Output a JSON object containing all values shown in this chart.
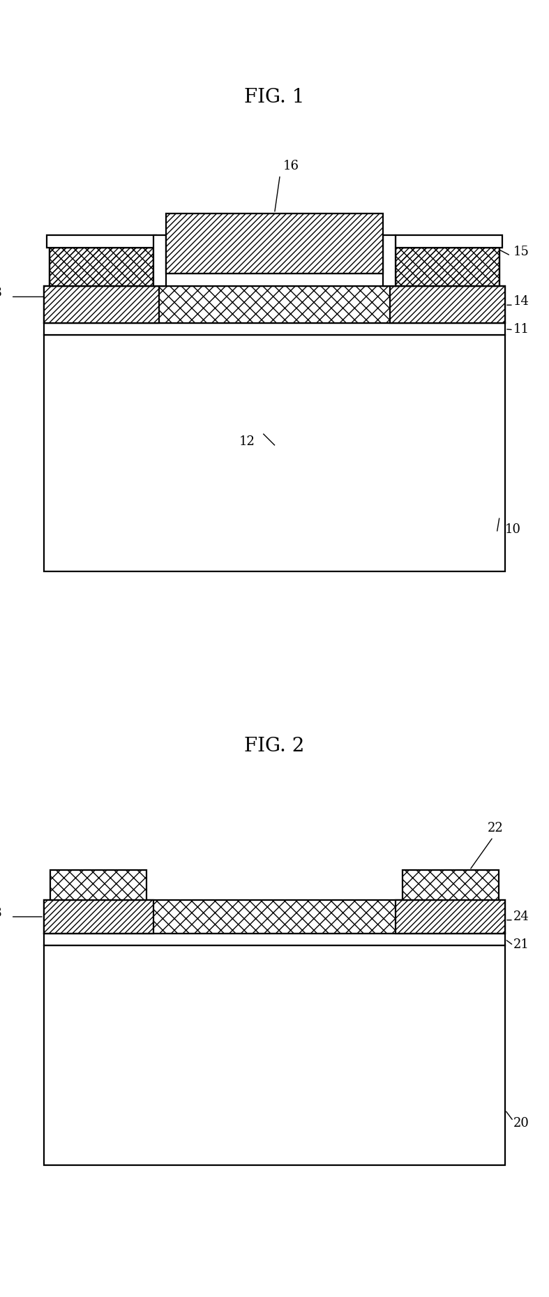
{
  "fig1_title": "FIG. 1",
  "fig2_title": "FIG. 2",
  "bg_color": "#ffffff",
  "line_color": "#000000",
  "hatch_cross": "xx",
  "hatch_diag": "////",
  "label_fontsize": 13,
  "title_fontsize": 20
}
